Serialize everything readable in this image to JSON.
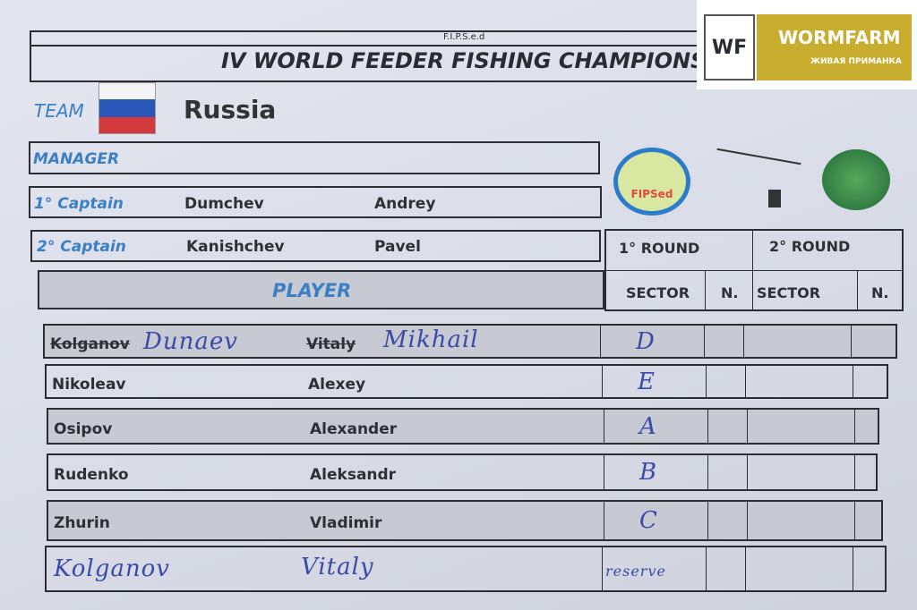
{
  "header": {
    "org": "F.I.P.S.e.d",
    "title": "IV WORLD FEEDER FISHING CHAMPIONSHIP"
  },
  "sponsor": {
    "name": "WORMFARM",
    "tagline": "ЖИВАЯ ПРИМАНКА",
    "mark": "WF",
    "colors": {
      "gold": "#c8ad2f"
    }
  },
  "team": {
    "label": "TEAM",
    "country": "Russia",
    "flag_colors": [
      "#f4f4f6",
      "#2a56b8",
      "#d2383c"
    ]
  },
  "logos": {
    "fipsed": "FIPSed"
  },
  "manager": {
    "label": "MANAGER"
  },
  "captain1": {
    "label": "1° Captain",
    "surname": "Dumchev",
    "name": "Andrey"
  },
  "captain2": {
    "label": "2° Captain",
    "surname": "Kanishchev",
    "name": "Pavel"
  },
  "rounds": {
    "round1": "1° ROUND",
    "round2": "2° ROUND",
    "sector": "SECTOR",
    "n": "N."
  },
  "player_header": "PLAYER",
  "players": [
    {
      "surname": "Kolganov",
      "name": "Vitaly",
      "hand_surname": "Dunaev",
      "hand_name": "Mikhail",
      "sector": "D",
      "struck": true
    },
    {
      "surname": "Nikoleav",
      "name": "Alexey",
      "sector": "E"
    },
    {
      "surname": "Osipov",
      "name": "Alexander",
      "sector": "A"
    },
    {
      "surname": "Rudenko",
      "name": "Aleksandr",
      "sector": "B"
    },
    {
      "surname": "Zhurin",
      "name": "Vladimir",
      "sector": "C"
    },
    {
      "hand_surname": "Kolganov",
      "hand_name": "Vitaly",
      "sector": "reserve"
    }
  ]
}
